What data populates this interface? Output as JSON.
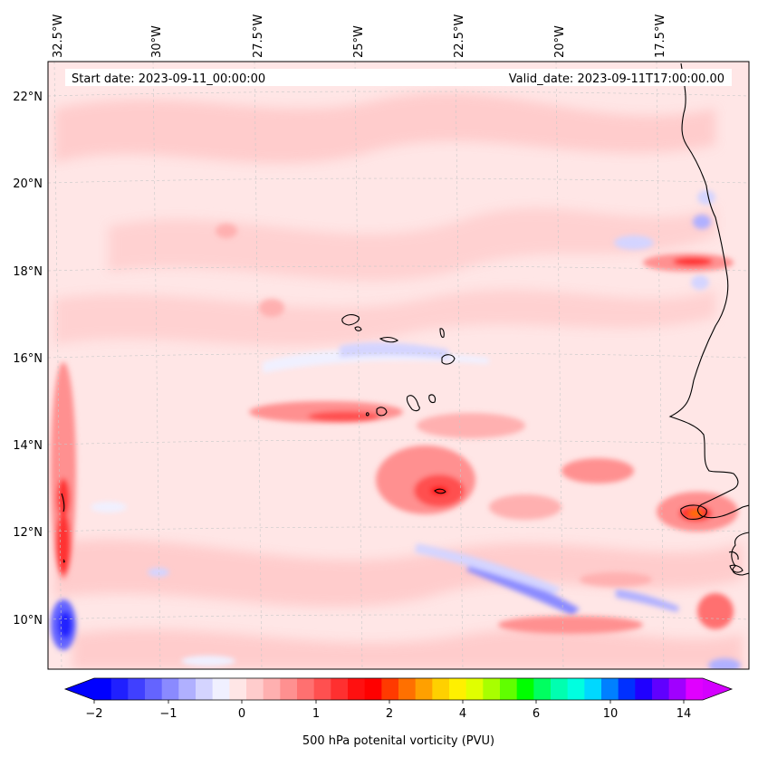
{
  "map": {
    "start_label": "Start date: 2023-09-11_00:00:00",
    "valid_label": "Valid_date: 2023-09-11T17:00:00.00",
    "lon_labels": [
      "32.5°W",
      "30°W",
      "27.5°W",
      "25°W",
      "22.5°W",
      "20°W",
      "17.5°W"
    ],
    "lat_labels": [
      "22°N",
      "20°N",
      "18°N",
      "16°N",
      "14°N",
      "12°N",
      "10°N"
    ],
    "background_color": "#ffe6e6",
    "coast_color": "#000000"
  },
  "colorbar": {
    "title": "500 hPa potenital vorticity (PVU)",
    "tick_labels": [
      "−2",
      "−1",
      "0",
      "1",
      "2",
      "4",
      "6",
      "10",
      "14"
    ],
    "colors": [
      "#0000ff",
      "#2020ff",
      "#4040ff",
      "#6464ff",
      "#8a8aff",
      "#b0b0ff",
      "#d4d4ff",
      "#f0f0ff",
      "#ffe6e6",
      "#ffcccc",
      "#ffb0b0",
      "#ff9090",
      "#ff7070",
      "#ff5050",
      "#ff3030",
      "#ff1010",
      "#ff0000",
      "#ff3a00",
      "#ff7000",
      "#ffa000",
      "#ffd000",
      "#fff000",
      "#e0ff00",
      "#a8ff00",
      "#60ff00",
      "#00ff00",
      "#00ff60",
      "#00ffb0",
      "#00ffe0",
      "#00d8ff",
      "#0080ff",
      "#0030ff",
      "#2000ff",
      "#6000ff",
      "#a000ff",
      "#e000ff"
    ],
    "under_color": "#0000ff",
    "over_color": "#d400ff"
  }
}
